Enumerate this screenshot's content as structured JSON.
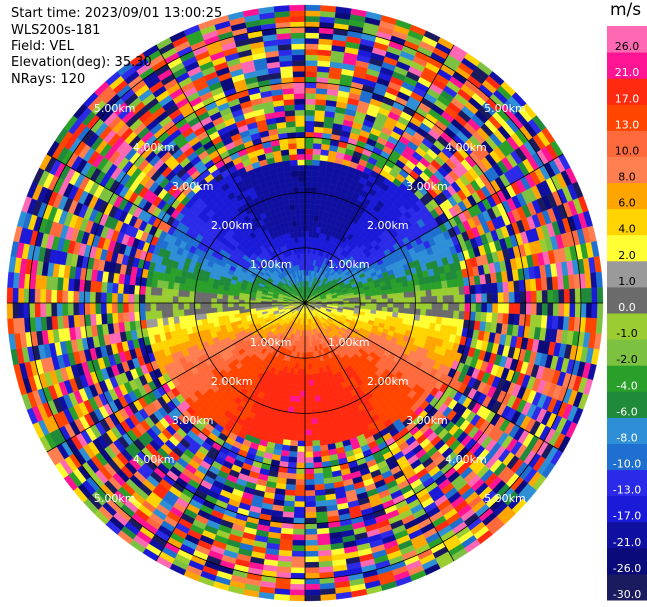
{
  "header": {
    "start_time": "Start time: 2023/09/01 13:00:25",
    "instrument": "WLS200s-181",
    "field": "Field: VEL",
    "elevation": "Elevation(deg): 35.30",
    "nrays": "NRays: 120"
  },
  "chart_data": {
    "type": "heatmap",
    "projection": "polar-ppi",
    "field": "VEL",
    "units": "m/s",
    "nrays": 120,
    "range_rings_km": [
      1.0,
      2.0,
      3.0,
      4.0,
      5.0
    ],
    "range_labels": [
      "1.00km",
      "2.00km",
      "3.00km",
      "4.00km",
      "5.00km"
    ],
    "max_range_km": 5.4,
    "pattern": {
      "coherent_range_km": 2.85,
      "zero_line_azimuth_deg": 90,
      "max_speed_ms": 20
    },
    "colorbar": {
      "levels": [
        -30.0,
        -26.0,
        -21.0,
        -17.0,
        -13.0,
        -10.0,
        -8.0,
        -6.0,
        -4.0,
        -2.0,
        -1.0,
        0.0,
        1.0,
        2.0,
        4.0,
        6.0,
        8.0,
        10.0,
        13.0,
        17.0,
        21.0,
        26.0
      ],
      "tick_labels": [
        "-30.0",
        "-26.0",
        "-21.0",
        "-17.0",
        "-13.0",
        "-10.0",
        "-8.0",
        "-6.0",
        "-4.0",
        "-2.0",
        "-1.0",
        "0.0",
        "1.0",
        "2.0",
        "4.0",
        "6.0",
        "8.0",
        "10.0",
        "13.0",
        "17.0",
        "21.0",
        "26.0"
      ],
      "colors": [
        "#1a1a5e",
        "#0a0a7a",
        "#1010a0",
        "#1a1ad8",
        "#2a2ae8",
        "#1f6fd0",
        "#2e8fd6",
        "#1f8a3a",
        "#2aa02a",
        "#7cc240",
        "#9acd32",
        "#6b6b6b",
        "#9a9a9a",
        "#ffff33",
        "#ffd400",
        "#ffa500",
        "#ff7f50",
        "#ff6a3d",
        "#ff4500",
        "#ff2a10",
        "#ff1493",
        "#ff69b4"
      ]
    }
  }
}
